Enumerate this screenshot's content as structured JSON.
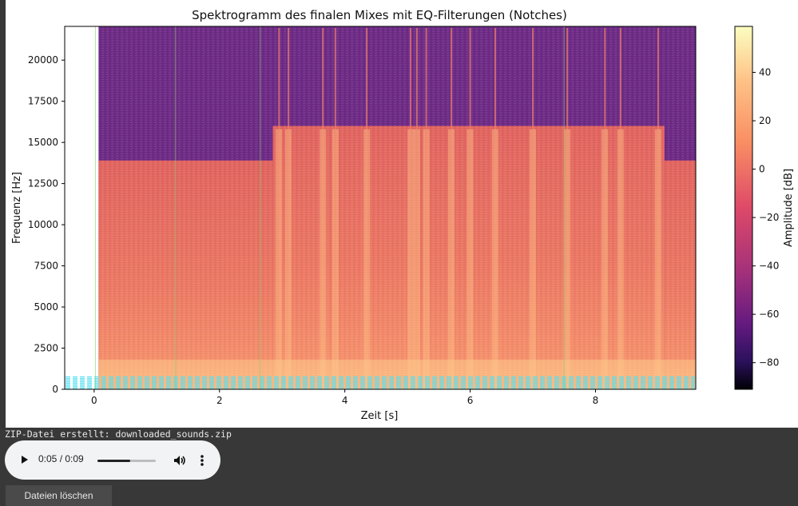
{
  "chart_data": {
    "type": "heatmap",
    "title": "Spektrogramm des finalen Mixes mit EQ-Filterungen (Notches)",
    "xlabel": "Zeit [s]",
    "ylabel": "Frequenz [Hz]",
    "xlim": [
      -0.47,
      9.6
    ],
    "ylim": [
      0,
      22050
    ],
    "xticks": [
      0,
      2,
      4,
      6,
      8
    ],
    "yticks": [
      0,
      2500,
      5000,
      7500,
      10000,
      12500,
      15000,
      17500,
      20000
    ],
    "colorbar": {
      "label": "Amplitude [dB]",
      "ticks": [
        40,
        20,
        0,
        -20,
        -40,
        -60,
        -80
      ],
      "range": [
        -91,
        59
      ],
      "colormap": "magma"
    },
    "data_extent_s": [
      0.07,
      9.6
    ],
    "bandwidth_steps": [
      {
        "start_s": 0.07,
        "end_s": 2.85,
        "cutoff_hz": 13900
      },
      {
        "start_s": 2.85,
        "end_s": 9.1,
        "cutoff_hz": 16000
      },
      {
        "start_s": 9.1,
        "end_s": 9.6,
        "cutoff_hz": 13900
      }
    ],
    "vertical_markers_s": [
      0.02,
      1.3,
      2.65,
      7.5
    ],
    "transient_times_s": [
      2.95,
      3.1,
      3.65,
      3.85,
      4.35,
      5.05,
      5.15,
      5.3,
      5.7,
      6.0,
      6.4,
      7.0,
      7.55,
      8.15,
      8.4,
      9.0
    ],
    "low_freq_dashed_lines_hz": [
      50,
      150,
      250,
      350,
      450,
      550,
      650,
      750
    ]
  },
  "colors": {
    "low": "#000004",
    "high": "#fcfdbf",
    "background": "#383838",
    "player": "#f1f3f4",
    "dashed": "#57e0f0"
  },
  "output": {
    "zip_message": "ZIP-Datei erstellt: downloaded_sounds.zip"
  },
  "audio": {
    "time": "0:05 / 0:09",
    "progress": 0.556,
    "play_icon": "play-icon",
    "volume_icon": "volume-icon",
    "more_icon": "more-vert-icon"
  },
  "buttons": {
    "delete_label": "Dateien löschen"
  }
}
